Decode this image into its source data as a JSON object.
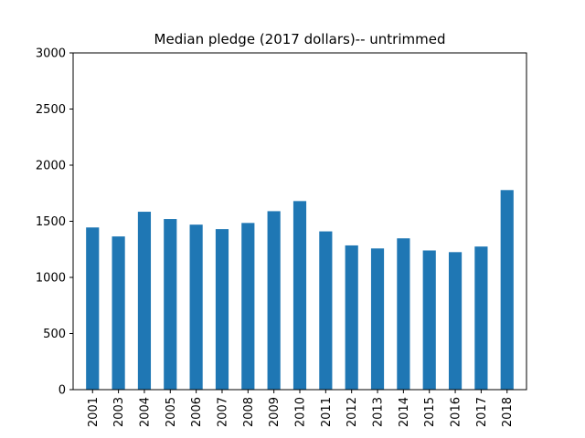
{
  "chart_data": {
    "type": "bar",
    "title": "Median pledge (2017 dollars)-- untrimmed",
    "xlabel": "",
    "ylabel": "",
    "categories": [
      "2001",
      "2003",
      "2004",
      "2005",
      "2006",
      "2007",
      "2008",
      "2009",
      "2010",
      "2011",
      "2012",
      "2013",
      "2014",
      "2015",
      "2016",
      "2017",
      "2018"
    ],
    "series": [
      {
        "values": [
          1445,
          1365,
          1585,
          1520,
          1470,
          1430,
          1485,
          1590,
          1680,
          1410,
          1285,
          1258,
          1348,
          1240,
          1225,
          1275,
          1778
        ]
      }
    ],
    "ylim": [
      0,
      3000
    ],
    "yticks": [
      0,
      500,
      1000,
      1500,
      2000,
      2500,
      3000
    ],
    "legend": "none",
    "grid": false,
    "colors": {
      "bar": "#1f77b4",
      "axis": "#000000"
    }
  }
}
